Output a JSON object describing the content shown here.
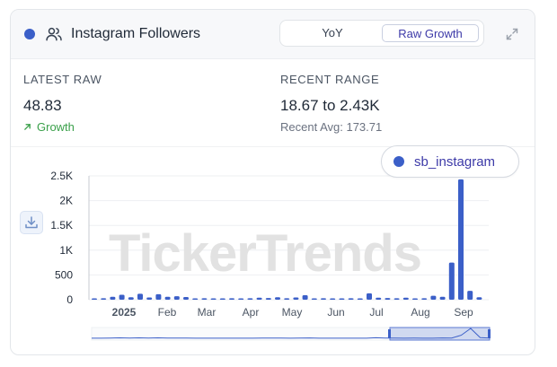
{
  "header": {
    "title": "Instagram Followers",
    "toggle": {
      "yoy_label": "YoY",
      "raw_label": "Raw Growth",
      "active": "Raw Growth"
    }
  },
  "stats": {
    "latest_label": "LATEST RAW",
    "latest_value": "48.83",
    "trend_label": "Growth",
    "range_label": "RECENT RANGE",
    "range_value": "18.67 to 2.43K",
    "avg_text": "Recent Avg: 173.71"
  },
  "legend": {
    "series_name": "sb_instagram"
  },
  "watermark": "TickerTrends",
  "colors": {
    "series": "#3b5fc8",
    "growth": "#3aa04a",
    "accent_text": "#3d3aa8"
  },
  "icons": [
    "series-dot-icon",
    "users-icon",
    "expand-icon",
    "download-icon",
    "arrow-up-right-icon"
  ],
  "chart_data": {
    "type": "bar",
    "title": "",
    "xlabel": "",
    "ylabel": "",
    "ylim": [
      0,
      2500
    ],
    "yticks": [
      0,
      500,
      1000,
      1500,
      2000,
      2500
    ],
    "ytick_labels": [
      "0",
      "500",
      "1K",
      "1.5K",
      "2K",
      "2.5K"
    ],
    "xtick_labels": [
      "2025",
      "Feb",
      "Mar",
      "Apr",
      "May",
      "Jun",
      "Jul",
      "Aug",
      "Sep"
    ],
    "grid": true,
    "legend_position": "top-right",
    "series": [
      {
        "name": "sb_instagram",
        "values": [
          25,
          30,
          60,
          100,
          50,
          120,
          45,
          110,
          60,
          70,
          55,
          20,
          30,
          25,
          20,
          30,
          25,
          30,
          40,
          35,
          50,
          30,
          45,
          90,
          25,
          30,
          25,
          20,
          30,
          25,
          130,
          40,
          35,
          30,
          40,
          25,
          30,
          80,
          60,
          750,
          2430,
          180,
          48.83
        ]
      }
    ]
  }
}
